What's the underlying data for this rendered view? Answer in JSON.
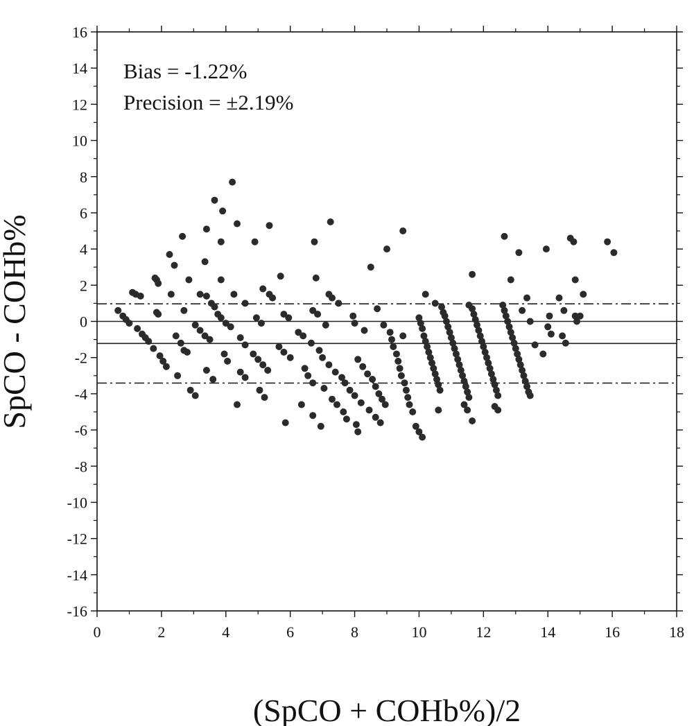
{
  "chart_data": {
    "type": "scatter",
    "title": "",
    "xlabel": "(SpCO + COHb%)/2",
    "ylabel": "SpCO - COHb%",
    "xlim": [
      0,
      18
    ],
    "ylim": [
      -16,
      16
    ],
    "x_ticks": [
      0,
      2,
      4,
      6,
      8,
      10,
      12,
      14,
      16,
      18
    ],
    "y_ticks": [
      -16,
      -14,
      -12,
      -10,
      -8,
      -6,
      -4,
      -2,
      0,
      2,
      4,
      6,
      8,
      10,
      12,
      14,
      16
    ],
    "grid": false,
    "annotations": [
      "Bias = -1.22%",
      "Precision = ±2.19%"
    ],
    "reference_lines": [
      {
        "y": 0,
        "style": "solid"
      },
      {
        "y": -1.22,
        "style": "solid"
      },
      {
        "y": 0.97,
        "style": "dash-dot"
      },
      {
        "y": -3.41,
        "style": "dash-dot"
      }
    ],
    "points": [
      [
        0.65,
        0.6
      ],
      [
        0.8,
        0.3
      ],
      [
        0.9,
        0.1
      ],
      [
        1.0,
        -0.1
      ],
      [
        1.1,
        1.6
      ],
      [
        1.2,
        1.5
      ],
      [
        1.25,
        -0.4
      ],
      [
        1.35,
        1.4
      ],
      [
        1.4,
        -0.7
      ],
      [
        1.5,
        -0.9
      ],
      [
        1.6,
        -1.1
      ],
      [
        1.75,
        -1.5
      ],
      [
        1.8,
        2.4
      ],
      [
        1.85,
        2.3
      ],
      [
        1.9,
        2.1
      ],
      [
        1.85,
        0.5
      ],
      [
        1.9,
        0.4
      ],
      [
        1.95,
        -1.9
      ],
      [
        2.05,
        -2.2
      ],
      [
        2.15,
        -2.5
      ],
      [
        2.25,
        3.7
      ],
      [
        2.3,
        1.5
      ],
      [
        2.4,
        3.1
      ],
      [
        2.45,
        -0.8
      ],
      [
        2.5,
        -3.0
      ],
      [
        2.6,
        -1.2
      ],
      [
        2.65,
        4.7
      ],
      [
        2.7,
        -1.6
      ],
      [
        2.7,
        0.6
      ],
      [
        2.8,
        -1.7
      ],
      [
        2.85,
        2.3
      ],
      [
        2.9,
        -3.8
      ],
      [
        3.05,
        -4.1
      ],
      [
        3.05,
        -0.2
      ],
      [
        3.2,
        1.5
      ],
      [
        3.2,
        -0.5
      ],
      [
        3.35,
        3.3
      ],
      [
        3.4,
        5.1
      ],
      [
        3.35,
        -0.8
      ],
      [
        3.4,
        1.4
      ],
      [
        3.4,
        -2.7
      ],
      [
        3.5,
        -1.0
      ],
      [
        3.55,
        1.0
      ],
      [
        3.6,
        -3.2
      ],
      [
        3.65,
        0.8
      ],
      [
        3.65,
        6.7
      ],
      [
        3.75,
        0.4
      ],
      [
        3.85,
        4.4
      ],
      [
        3.85,
        2.3
      ],
      [
        3.85,
        0.2
      ],
      [
        3.9,
        6.1
      ],
      [
        3.95,
        -1.8
      ],
      [
        4.0,
        -0.1
      ],
      [
        4.05,
        -2.2
      ],
      [
        4.15,
        -0.3
      ],
      [
        4.2,
        7.7
      ],
      [
        4.25,
        1.5
      ],
      [
        4.35,
        5.4
      ],
      [
        4.35,
        -4.6
      ],
      [
        4.45,
        -0.9
      ],
      [
        4.45,
        -2.8
      ],
      [
        4.6,
        1.0
      ],
      [
        4.6,
        -1.3
      ],
      [
        4.6,
        -3.1
      ],
      [
        4.85,
        -1.8
      ],
      [
        4.9,
        4.4
      ],
      [
        4.95,
        0.2
      ],
      [
        5.0,
        -2.1
      ],
      [
        5.05,
        -3.8
      ],
      [
        5.1,
        -0.1
      ],
      [
        5.15,
        1.8
      ],
      [
        5.15,
        -2.4
      ],
      [
        5.2,
        -4.2
      ],
      [
        5.3,
        -2.7
      ],
      [
        5.35,
        5.3
      ],
      [
        5.35,
        1.5
      ],
      [
        5.45,
        1.3
      ],
      [
        5.65,
        -1.4
      ],
      [
        5.7,
        2.5
      ],
      [
        5.8,
        0.4
      ],
      [
        5.8,
        -1.7
      ],
      [
        5.85,
        -5.6
      ],
      [
        5.95,
        0.2
      ],
      [
        6.0,
        -2.0
      ],
      [
        6.25,
        -0.6
      ],
      [
        6.35,
        -4.6
      ],
      [
        6.4,
        -0.8
      ],
      [
        6.45,
        -2.6
      ],
      [
        6.55,
        -3.0
      ],
      [
        6.65,
        -1.2
      ],
      [
        6.7,
        -3.4
      ],
      [
        6.7,
        -5.2
      ],
      [
        6.7,
        0.6
      ],
      [
        6.75,
        4.4
      ],
      [
        6.8,
        2.4
      ],
      [
        6.85,
        0.4
      ],
      [
        6.9,
        -1.6
      ],
      [
        6.95,
        -5.8
      ],
      [
        7.0,
        -2.0
      ],
      [
        7.05,
        -3.7
      ],
      [
        7.1,
        -0.2
      ],
      [
        7.2,
        1.5
      ],
      [
        7.2,
        -2.4
      ],
      [
        7.25,
        5.5
      ],
      [
        7.3,
        1.3
      ],
      [
        7.3,
        -4.3
      ],
      [
        7.4,
        -2.8
      ],
      [
        7.45,
        -4.6
      ],
      [
        7.5,
        1.0
      ],
      [
        7.6,
        -3.1
      ],
      [
        7.65,
        -5.0
      ],
      [
        7.7,
        -3.4
      ],
      [
        7.75,
        -5.4
      ],
      [
        7.85,
        -3.8
      ],
      [
        7.95,
        0.3
      ],
      [
        8.0,
        -4.1
      ],
      [
        8.0,
        -0.1
      ],
      [
        8.05,
        -5.7
      ],
      [
        8.1,
        -6.1
      ],
      [
        8.1,
        -2.1
      ],
      [
        8.2,
        -4.5
      ],
      [
        8.25,
        -2.5
      ],
      [
        8.3,
        -0.5
      ],
      [
        8.4,
        -2.9
      ],
      [
        8.45,
        -4.9
      ],
      [
        8.5,
        3.0
      ],
      [
        8.55,
        -3.2
      ],
      [
        8.65,
        -3.6
      ],
      [
        8.65,
        -5.3
      ],
      [
        8.7,
        0.7
      ],
      [
        8.75,
        -4.0
      ],
      [
        8.8,
        -5.6
      ],
      [
        8.85,
        -4.3
      ],
      [
        8.9,
        -0.2
      ],
      [
        8.95,
        -4.6
      ],
      [
        9.0,
        4.0
      ],
      [
        9.1,
        -0.6
      ],
      [
        9.15,
        -1.0
      ],
      [
        9.2,
        -1.4
      ],
      [
        9.3,
        -1.8
      ],
      [
        9.35,
        -2.2
      ],
      [
        9.4,
        -2.6
      ],
      [
        9.45,
        -3.0
      ],
      [
        9.5,
        -0.8
      ],
      [
        9.5,
        5.0
      ],
      [
        9.55,
        -3.4
      ],
      [
        9.6,
        -3.8
      ],
      [
        9.65,
        -4.2
      ],
      [
        9.7,
        -4.6
      ],
      [
        9.8,
        -5.0
      ],
      [
        9.9,
        -5.8
      ],
      [
        10.0,
        -6.1
      ],
      [
        10.1,
        -6.4
      ],
      [
        10.0,
        0.2
      ],
      [
        10.05,
        -0.1
      ],
      [
        10.1,
        -0.4
      ],
      [
        10.15,
        -0.8
      ],
      [
        10.2,
        -1.1
      ],
      [
        10.25,
        -1.4
      ],
      [
        10.3,
        -1.7
      ],
      [
        10.35,
        -2.0
      ],
      [
        10.4,
        -2.3
      ],
      [
        10.45,
        -2.6
      ],
      [
        10.5,
        -2.9
      ],
      [
        10.55,
        -3.2
      ],
      [
        10.6,
        -3.5
      ],
      [
        10.65,
        -3.8
      ],
      [
        10.2,
        1.5
      ],
      [
        10.5,
        1.0
      ],
      [
        10.6,
        -4.9
      ],
      [
        10.7,
        0.8
      ],
      [
        10.75,
        0.5
      ],
      [
        10.8,
        0.3
      ],
      [
        10.85,
        0.0
      ],
      [
        10.9,
        -0.3
      ],
      [
        10.95,
        -0.6
      ],
      [
        11.0,
        -0.9
      ],
      [
        11.05,
        -1.2
      ],
      [
        11.1,
        -1.5
      ],
      [
        11.15,
        -1.8
      ],
      [
        11.2,
        -2.1
      ],
      [
        11.25,
        -2.4
      ],
      [
        11.3,
        -2.7
      ],
      [
        11.35,
        -3.0
      ],
      [
        11.4,
        -3.3
      ],
      [
        11.45,
        -3.6
      ],
      [
        11.5,
        -3.9
      ],
      [
        11.55,
        -4.2
      ],
      [
        11.4,
        -4.6
      ],
      [
        11.5,
        -4.9
      ],
      [
        11.55,
        0.9
      ],
      [
        11.65,
        0.7
      ],
      [
        11.7,
        0.4
      ],
      [
        11.75,
        0.1
      ],
      [
        11.8,
        -0.2
      ],
      [
        11.85,
        -0.5
      ],
      [
        11.9,
        -0.8
      ],
      [
        11.95,
        -1.1
      ],
      [
        12.0,
        -1.4
      ],
      [
        12.05,
        -1.7
      ],
      [
        12.1,
        -2.0
      ],
      [
        12.15,
        -2.3
      ],
      [
        12.2,
        -2.6
      ],
      [
        12.25,
        -2.9
      ],
      [
        12.3,
        -3.2
      ],
      [
        12.35,
        -3.5
      ],
      [
        12.4,
        -3.8
      ],
      [
        12.45,
        -4.1
      ],
      [
        12.35,
        -4.7
      ],
      [
        12.45,
        -4.9
      ],
      [
        11.65,
        2.6
      ],
      [
        11.65,
        -5.5
      ],
      [
        12.6,
        0.9
      ],
      [
        12.65,
        0.6
      ],
      [
        12.7,
        0.3
      ],
      [
        12.75,
        0.0
      ],
      [
        12.8,
        -0.3
      ],
      [
        12.85,
        -0.6
      ],
      [
        12.9,
        -0.9
      ],
      [
        12.95,
        -1.2
      ],
      [
        13.0,
        -1.5
      ],
      [
        13.05,
        -1.8
      ],
      [
        13.1,
        -2.1
      ],
      [
        13.15,
        -2.4
      ],
      [
        13.2,
        -2.7
      ],
      [
        13.25,
        -3.0
      ],
      [
        13.3,
        -3.3
      ],
      [
        13.35,
        -3.6
      ],
      [
        13.4,
        -3.9
      ],
      [
        13.45,
        -4.1
      ],
      [
        12.65,
        4.7
      ],
      [
        12.85,
        2.3
      ],
      [
        13.1,
        3.8
      ],
      [
        13.2,
        0.6
      ],
      [
        13.35,
        1.3
      ],
      [
        13.45,
        0.0
      ],
      [
        13.6,
        -1.3
      ],
      [
        13.85,
        -1.8
      ],
      [
        13.95,
        4.0
      ],
      [
        14.0,
        -0.3
      ],
      [
        14.05,
        0.3
      ],
      [
        14.1,
        -0.7
      ],
      [
        14.35,
        1.3
      ],
      [
        14.45,
        -0.8
      ],
      [
        14.5,
        0.6
      ],
      [
        14.55,
        -1.2
      ],
      [
        14.7,
        4.6
      ],
      [
        14.8,
        4.4
      ],
      [
        14.85,
        2.3
      ],
      [
        14.85,
        0.3
      ],
      [
        14.9,
        0.0
      ],
      [
        15.0,
        0.3
      ],
      [
        15.1,
        1.5
      ],
      [
        15.85,
        4.4
      ],
      [
        16.05,
        3.8
      ]
    ]
  }
}
